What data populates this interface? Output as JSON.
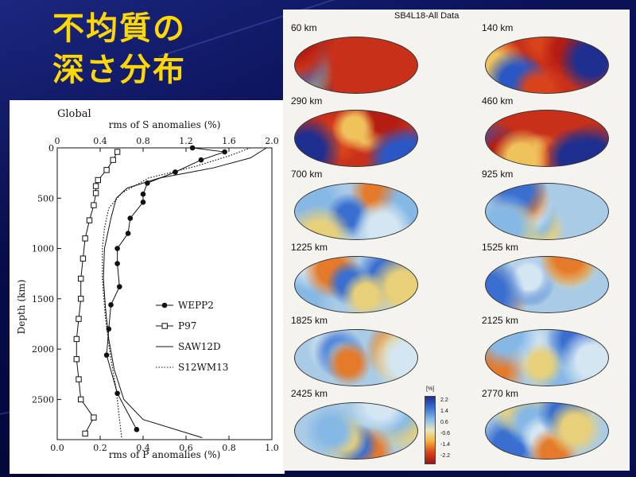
{
  "slide": {
    "title_lines": [
      "不均質の",
      "深さ分布"
    ],
    "colors": {
      "background": "#0a1157",
      "title": "#ffd800"
    }
  },
  "chart_data": {
    "type": "line",
    "panel_label": "Global",
    "top_axis": {
      "label": "rms of S anomalies (%)",
      "range": [
        0,
        2.0
      ],
      "ticks": [
        "0",
        "0.4",
        "0.8",
        "1.2",
        "1.6",
        "2.0"
      ]
    },
    "bottom_axis": {
      "label": "rms of P anomalies (%)",
      "range": [
        0,
        1.0
      ],
      "ticks": [
        "0.0",
        "0.2",
        "0.4",
        "0.6",
        "0.8",
        "1.0"
      ]
    },
    "y_axis": {
      "label": "Depth (km)",
      "range": [
        0,
        2900
      ],
      "inverted": true,
      "ticks": [
        "0",
        "500",
        "1000",
        "1500",
        "2000",
        "2500"
      ]
    },
    "legend_position": "lower-right",
    "series": [
      {
        "name": "WEPP2",
        "axis": "P",
        "marker": "filled-circle",
        "style": "solid",
        "points": [
          [
            0.63,
            0
          ],
          [
            0.78,
            40
          ],
          [
            0.67,
            120
          ],
          [
            0.55,
            240
          ],
          [
            0.42,
            350
          ],
          [
            0.4,
            460
          ],
          [
            0.4,
            540
          ],
          [
            0.34,
            700
          ],
          [
            0.33,
            850
          ],
          [
            0.28,
            1000
          ],
          [
            0.28,
            1150
          ],
          [
            0.29,
            1380
          ],
          [
            0.25,
            1560
          ],
          [
            0.24,
            1800
          ],
          [
            0.23,
            2060
          ],
          [
            0.28,
            2440
          ],
          [
            0.37,
            2800
          ]
        ]
      },
      {
        "name": "P97",
        "axis": "P",
        "marker": "open-square",
        "style": "solid",
        "points": [
          [
            0.28,
            40
          ],
          [
            0.26,
            120
          ],
          [
            0.23,
            220
          ],
          [
            0.19,
            320
          ],
          [
            0.18,
            380
          ],
          [
            0.18,
            450
          ],
          [
            0.17,
            570
          ],
          [
            0.15,
            720
          ],
          [
            0.13,
            900
          ],
          [
            0.12,
            1100
          ],
          [
            0.11,
            1300
          ],
          [
            0.11,
            1500
          ],
          [
            0.1,
            1700
          ],
          [
            0.09,
            1900
          ],
          [
            0.09,
            2100
          ],
          [
            0.1,
            2300
          ],
          [
            0.11,
            2500
          ],
          [
            0.17,
            2680
          ],
          [
            0.13,
            2840
          ]
        ]
      },
      {
        "name": "SAW12D",
        "axis": "S",
        "marker": "none",
        "style": "solid",
        "points": [
          [
            1.95,
            0
          ],
          [
            1.8,
            100
          ],
          [
            1.45,
            200
          ],
          [
            0.95,
            300
          ],
          [
            0.65,
            400
          ],
          [
            0.55,
            500
          ],
          [
            0.5,
            700
          ],
          [
            0.44,
            1000
          ],
          [
            0.43,
            1300
          ],
          [
            0.45,
            1600
          ],
          [
            0.48,
            1900
          ],
          [
            0.53,
            2200
          ],
          [
            0.62,
            2500
          ],
          [
            0.8,
            2700
          ],
          [
            1.35,
            2880
          ]
        ]
      },
      {
        "name": "S12WM13",
        "axis": "S",
        "marker": "none",
        "style": "dotted",
        "points": [
          [
            1.8,
            0
          ],
          [
            1.6,
            80
          ],
          [
            1.3,
            180
          ],
          [
            0.85,
            300
          ],
          [
            0.6,
            450
          ],
          [
            0.48,
            600
          ],
          [
            0.44,
            800
          ],
          [
            0.42,
            1000
          ],
          [
            0.42,
            1300
          ],
          [
            0.45,
            1700
          ],
          [
            0.5,
            2100
          ],
          [
            0.55,
            2400
          ],
          [
            0.58,
            2700
          ],
          [
            0.6,
            2880
          ]
        ]
      }
    ]
  },
  "maps": {
    "title": "SB4L18-All Data",
    "depth_labels": [
      "60  km",
      "140  km",
      "290  km",
      "460  km",
      "700  km",
      "925  km",
      "1225  km",
      "1525  km",
      "1825  km",
      "2125  km",
      "2425  km",
      "2770  km"
    ],
    "colorbar": {
      "unit": "[%]",
      "ticks": [
        "2.2",
        "1.4",
        "0.6",
        "-0.6",
        "-1.4",
        "-2.2"
      ],
      "colors": [
        "#1f2f8f",
        "#3a6fd0",
        "#86b8e6",
        "#e8e6c0",
        "#f2b23a",
        "#d9431c",
        "#9e1410"
      ]
    }
  }
}
